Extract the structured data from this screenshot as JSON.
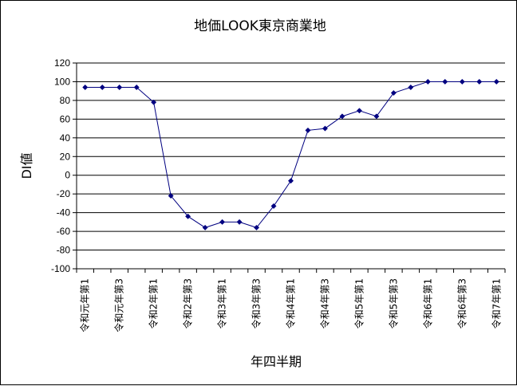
{
  "chart_data": {
    "type": "line",
    "title": "地価LOOK東京商業地",
    "xlabel": "年四半期",
    "ylabel": "DI値",
    "ylim": [
      -100,
      120
    ],
    "ytick_step": 20,
    "grid": "horizontal",
    "line_color": "#000080",
    "marker": "diamond",
    "x_tick_labels": [
      "令和元年第1",
      "令和元年第3",
      "令和2年第1",
      "令和2年第3",
      "令和3年第1",
      "令和3年第3",
      "令和4年第1",
      "令和4年第3",
      "令和5年第1",
      "令和5年第3",
      "令和6年第1",
      "令和6年第3",
      "令和7年第1"
    ],
    "series": [
      {
        "values": [
          94,
          94,
          94,
          94,
          78,
          -22,
          -44,
          -56,
          -50,
          -50,
          -56,
          -33,
          -6,
          48,
          50,
          63,
          69,
          63,
          88,
          94,
          100,
          100,
          100,
          100,
          100
        ]
      }
    ]
  }
}
